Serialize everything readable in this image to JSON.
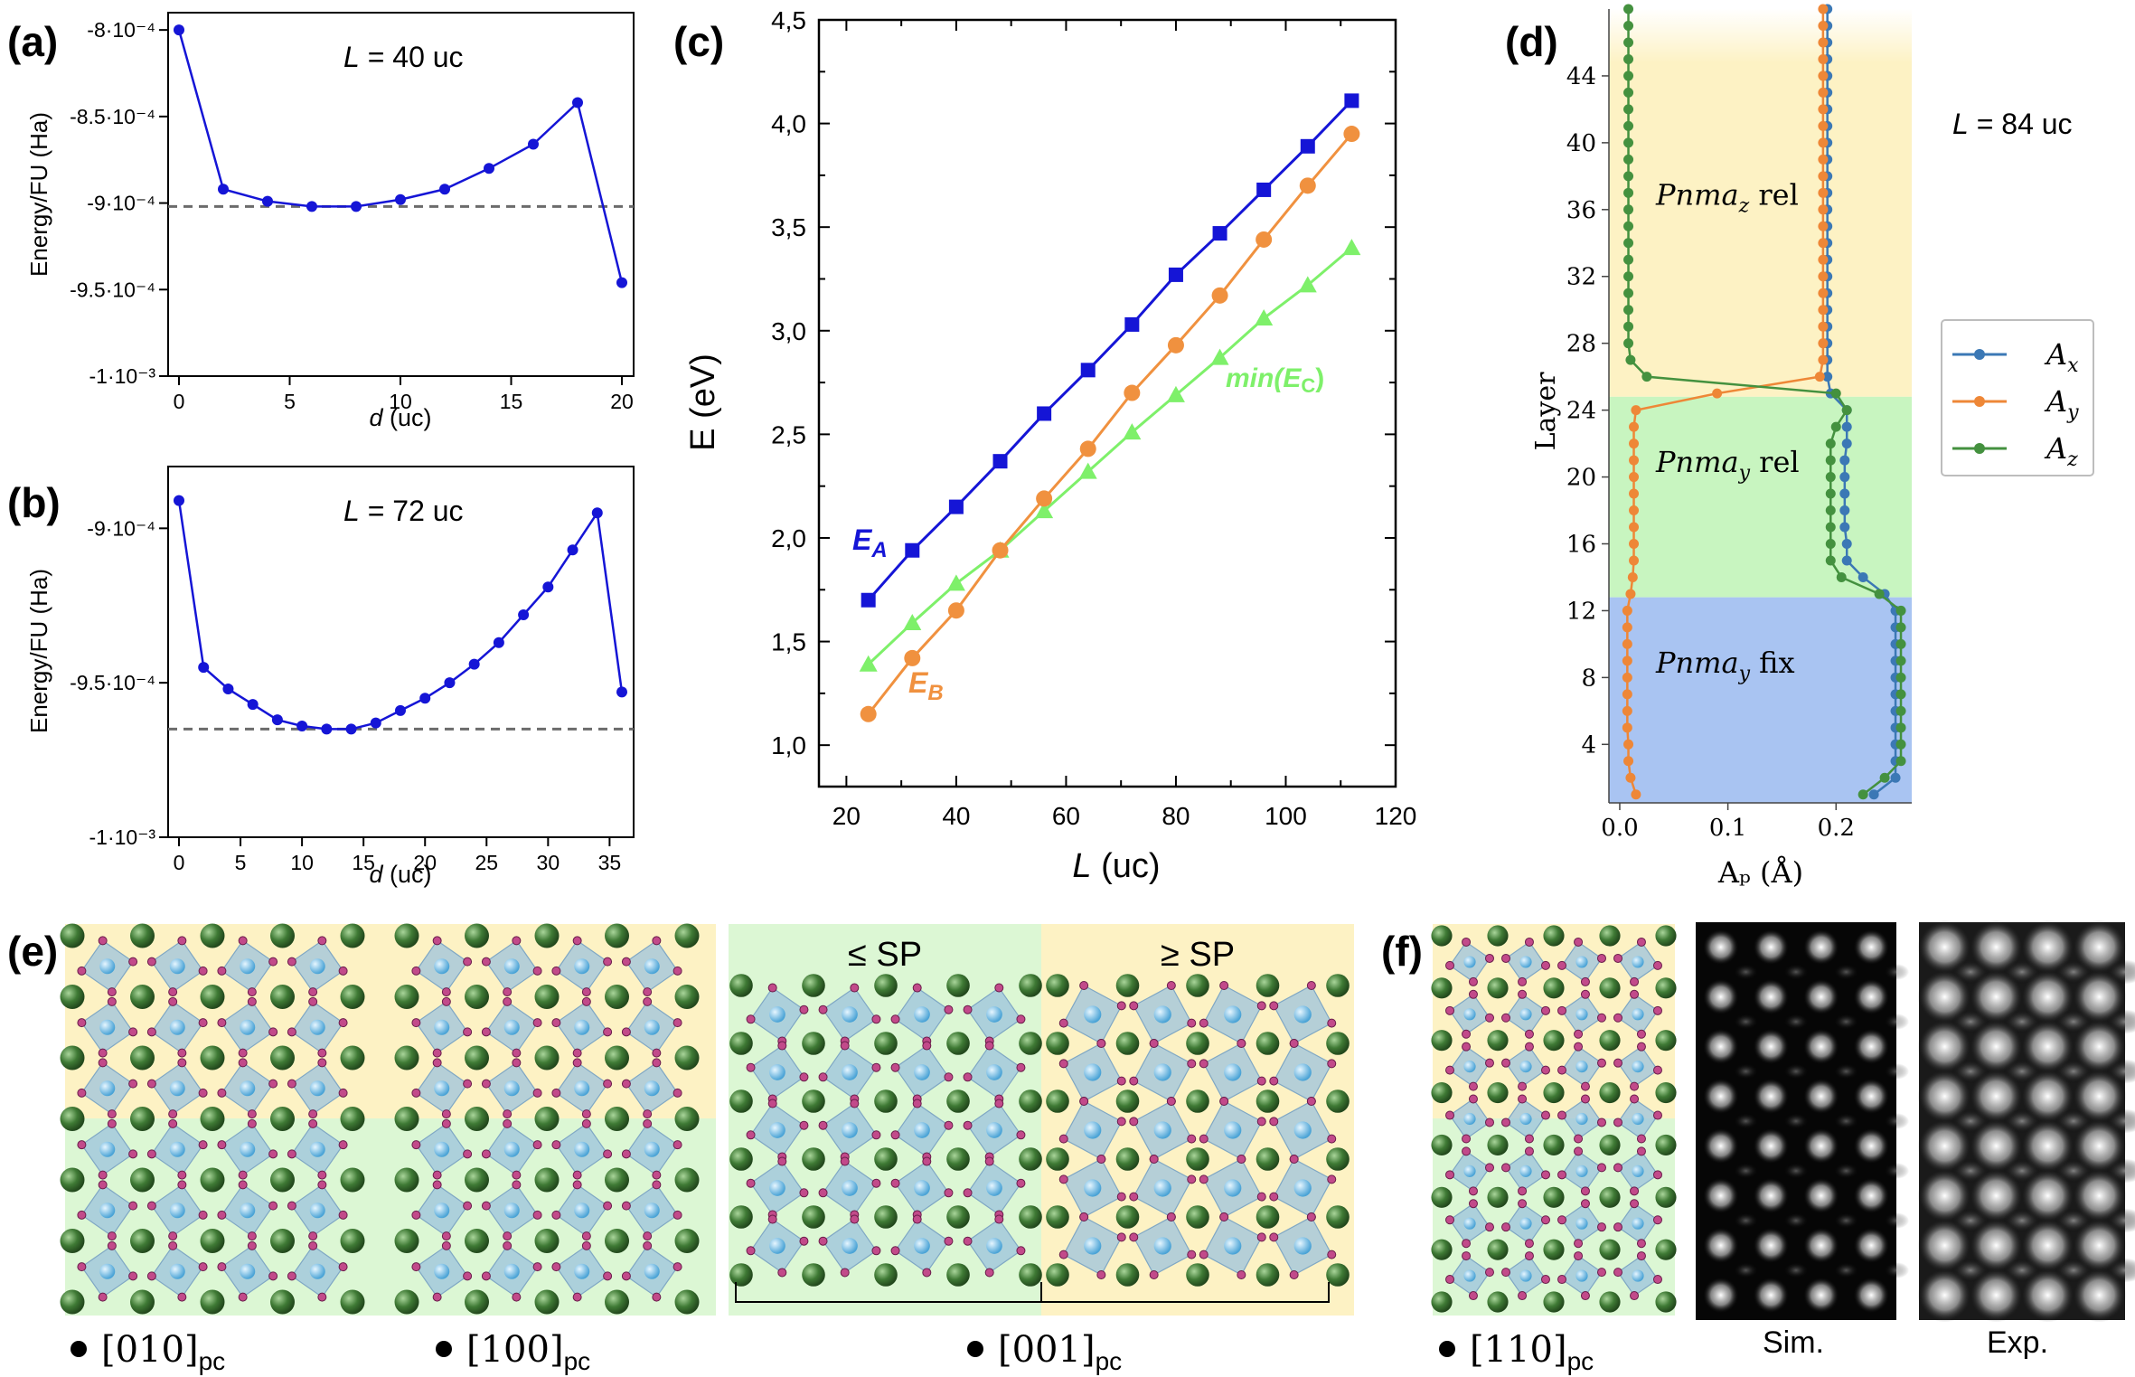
{
  "panels": {
    "a": {
      "label": "(a)",
      "annotation_var": "L",
      "annotation_rest": " = 40 uc",
      "ylabel": "Energy/FU (Ha)",
      "xlabel_var": "d",
      "xlabel_rest": " (uc)",
      "yticks": [
        "-8·10⁻⁴",
        "-8.5·10⁻⁴",
        "-9·10⁻⁴",
        "-9.5·10⁻⁴",
        "-1·10⁻³"
      ],
      "xticks": [
        "0",
        "5",
        "10",
        "15",
        "20"
      ]
    },
    "b": {
      "label": "(b)",
      "annotation_var": "L",
      "annotation_rest": " = 72 uc",
      "ylabel": "Energy/FU (Ha)",
      "xlabel_var": "d",
      "xlabel_rest": " (uc)",
      "yticks": [
        "-9·10⁻⁴",
        "-9.5·10⁻⁴",
        "-1·10⁻³"
      ],
      "xticks": [
        "0",
        "5",
        "10",
        "15",
        "20",
        "25",
        "30",
        "35"
      ]
    },
    "c": {
      "label": "(c)",
      "ylabel": "E (eV)",
      "xlabel_var": "L",
      "xlabel_rest": " (uc)",
      "yticks": [
        "1,0",
        "1,5",
        "2,0",
        "2,5",
        "3,0",
        "3,5",
        "4,0",
        "4,5"
      ],
      "xticks": [
        "20",
        "40",
        "60",
        "80",
        "100",
        "120"
      ],
      "series_labels": {
        "A_main": "E",
        "A_sub": "A",
        "B_main": "E",
        "B_sub": "B",
        "C_pre": "min(",
        "C_main": "E",
        "C_sub": "C",
        "C_post": ")"
      }
    },
    "d": {
      "label": "(d)",
      "annotation_var": "L",
      "annotation_rest": " = 84 uc",
      "ylabel": "Layer",
      "xlabel": "Aₚ (Å)",
      "yticks": [
        "4",
        "8",
        "12",
        "16",
        "20",
        "24",
        "28",
        "32",
        "36",
        "40",
        "44"
      ],
      "xticks": [
        "0.0",
        "0.1",
        "0.2"
      ],
      "regions": [
        {
          "text_main": "Pnma",
          "text_sub": "z",
          "text_rest": " rel",
          "color": "#fdf2c4"
        },
        {
          "text_main": "Pnma",
          "text_sub": "y",
          "text_rest": " rel",
          "color": "#c8f5c0"
        },
        {
          "text_main": "Pnma",
          "text_sub": "y",
          "text_rest": " fix",
          "color": "#a9c4f2"
        }
      ],
      "legend": [
        {
          "main": "A",
          "sub": "x",
          "color": "#3b78b5"
        },
        {
          "main": "A",
          "sub": "y",
          "color": "#ee8737"
        },
        {
          "main": "A",
          "sub": "z",
          "color": "#44913f"
        }
      ]
    },
    "e": {
      "label": "(e)",
      "sp_left": "≤ SP",
      "sp_right": "≥ SP",
      "captions": [
        {
          "main": "[010]",
          "sub": "pc"
        },
        {
          "main": "[100]",
          "sub": "pc"
        },
        {
          "main": "[001]",
          "sub": "pc"
        }
      ]
    },
    "f": {
      "label": "(f)",
      "caption_main": "[110]",
      "caption_sub": "pc",
      "sim": "Sim.",
      "exp": "Exp."
    }
  },
  "colors": {
    "blue_series": "#1515d6",
    "orange_series": "#f0913f",
    "green_series": "#7ef06a",
    "dashed_ref": "#6b6b6b",
    "yellow_region": "#fdf2c4",
    "green_region": "#dcf7d4"
  },
  "chart_data": [
    {
      "type": "line",
      "panel": "a",
      "title": "L = 40 uc",
      "xlabel": "d (uc)",
      "ylabel": "Energy/FU (Ha)",
      "x": [
        0,
        2,
        4,
        6,
        8,
        10,
        12,
        14,
        16,
        18,
        20
      ],
      "y": [
        -0.0008,
        -0.000892,
        -0.000899,
        -0.000902,
        -0.000902,
        -0.000898,
        -0.000892,
        -0.00088,
        -0.000866,
        -0.000842,
        -0.000946
      ],
      "reference_line": -0.000902,
      "xlim": [
        0,
        20
      ],
      "ylim": [
        -0.001,
        -0.00079
      ]
    },
    {
      "type": "line",
      "panel": "b",
      "title": "L = 72 uc",
      "xlabel": "d (uc)",
      "ylabel": "Energy/FU (Ha)",
      "x": [
        0,
        2,
        4,
        6,
        8,
        10,
        12,
        14,
        16,
        18,
        20,
        22,
        24,
        26,
        28,
        30,
        32,
        34,
        36
      ],
      "y": [
        -0.000891,
        -0.000945,
        -0.000952,
        -0.000957,
        -0.000962,
        -0.000964,
        -0.000965,
        -0.000965,
        -0.000963,
        -0.000959,
        -0.000955,
        -0.00095,
        -0.000944,
        -0.000937,
        -0.000928,
        -0.000919,
        -0.000907,
        -0.000895,
        -0.000953
      ],
      "reference_line": -0.000965,
      "xlim": [
        0,
        36
      ],
      "ylim": [
        -0.001,
        -0.00088
      ]
    },
    {
      "type": "line",
      "panel": "c",
      "xlabel": "L (uc)",
      "ylabel": "E (eV)",
      "x": [
        24,
        32,
        40,
        48,
        56,
        64,
        72,
        80,
        88,
        96,
        104,
        112
      ],
      "series": [
        {
          "name": "E_A",
          "marker": "square",
          "values": [
            1.7,
            1.94,
            2.15,
            2.37,
            2.6,
            2.81,
            3.03,
            3.27,
            3.47,
            3.68,
            3.89,
            4.11
          ]
        },
        {
          "name": "E_B",
          "marker": "circle",
          "values": [
            1.15,
            1.42,
            1.65,
            1.94,
            2.19,
            2.43,
            2.7,
            2.93,
            3.17,
            3.44,
            3.7,
            3.95
          ]
        },
        {
          "name": "min(E_C)",
          "marker": "triangle",
          "values": [
            1.39,
            1.59,
            1.78,
            1.94,
            2.13,
            2.32,
            2.51,
            2.69,
            2.87,
            3.06,
            3.22,
            3.4
          ]
        }
      ],
      "xlim": [
        15,
        120
      ],
      "ylim": [
        0.8,
        4.5
      ]
    },
    {
      "type": "line",
      "panel": "d",
      "xlabel": "Aₚ (Å)",
      "ylabel": "Layer",
      "layers": [
        1,
        2,
        3,
        4,
        5,
        6,
        7,
        8,
        9,
        10,
        11,
        12,
        13,
        14,
        15,
        16,
        17,
        18,
        19,
        20,
        21,
        22,
        23,
        24,
        25,
        26,
        27,
        28,
        29,
        30,
        31,
        32,
        33,
        34,
        35,
        36,
        37,
        38,
        39,
        40,
        41,
        42,
        43,
        44,
        45,
        46,
        47,
        48
      ],
      "series": [
        {
          "name": "A_x",
          "values": [
            0.235,
            0.255,
            0.255,
            0.255,
            0.255,
            0.255,
            0.255,
            0.255,
            0.255,
            0.255,
            0.255,
            0.255,
            0.245,
            0.225,
            0.21,
            0.21,
            0.208,
            0.208,
            0.208,
            0.208,
            0.208,
            0.21,
            0.21,
            0.21,
            0.195,
            0.192,
            0.192,
            0.192,
            0.192,
            0.192,
            0.192,
            0.192,
            0.192,
            0.192,
            0.192,
            0.192,
            0.192,
            0.192,
            0.192,
            0.192,
            0.192,
            0.192,
            0.192,
            0.192,
            0.192,
            0.192,
            0.192,
            0.192
          ]
        },
        {
          "name": "A_y",
          "values": [
            0.015,
            0.01,
            0.008,
            0.008,
            0.007,
            0.007,
            0.007,
            0.007,
            0.007,
            0.007,
            0.007,
            0.007,
            0.01,
            0.012,
            0.013,
            0.013,
            0.013,
            0.013,
            0.013,
            0.013,
            0.013,
            0.013,
            0.013,
            0.015,
            0.09,
            0.185,
            0.188,
            0.188,
            0.188,
            0.188,
            0.188,
            0.188,
            0.188,
            0.188,
            0.188,
            0.188,
            0.188,
            0.188,
            0.188,
            0.188,
            0.188,
            0.188,
            0.188,
            0.188,
            0.188,
            0.188,
            0.188,
            0.188
          ]
        },
        {
          "name": "A_z",
          "values": [
            0.225,
            0.245,
            0.26,
            0.26,
            0.26,
            0.26,
            0.26,
            0.26,
            0.26,
            0.26,
            0.26,
            0.26,
            0.24,
            0.205,
            0.195,
            0.195,
            0.195,
            0.195,
            0.195,
            0.195,
            0.195,
            0.195,
            0.2,
            0.21,
            0.2,
            0.025,
            0.01,
            0.008,
            0.008,
            0.008,
            0.008,
            0.008,
            0.008,
            0.008,
            0.008,
            0.008,
            0.008,
            0.008,
            0.008,
            0.008,
            0.008,
            0.008,
            0.008,
            0.008,
            0.008,
            0.008,
            0.008,
            0.008
          ]
        }
      ],
      "xlim": [
        -0.01,
        0.27
      ],
      "ylim": [
        0.5,
        48
      ]
    }
  ]
}
